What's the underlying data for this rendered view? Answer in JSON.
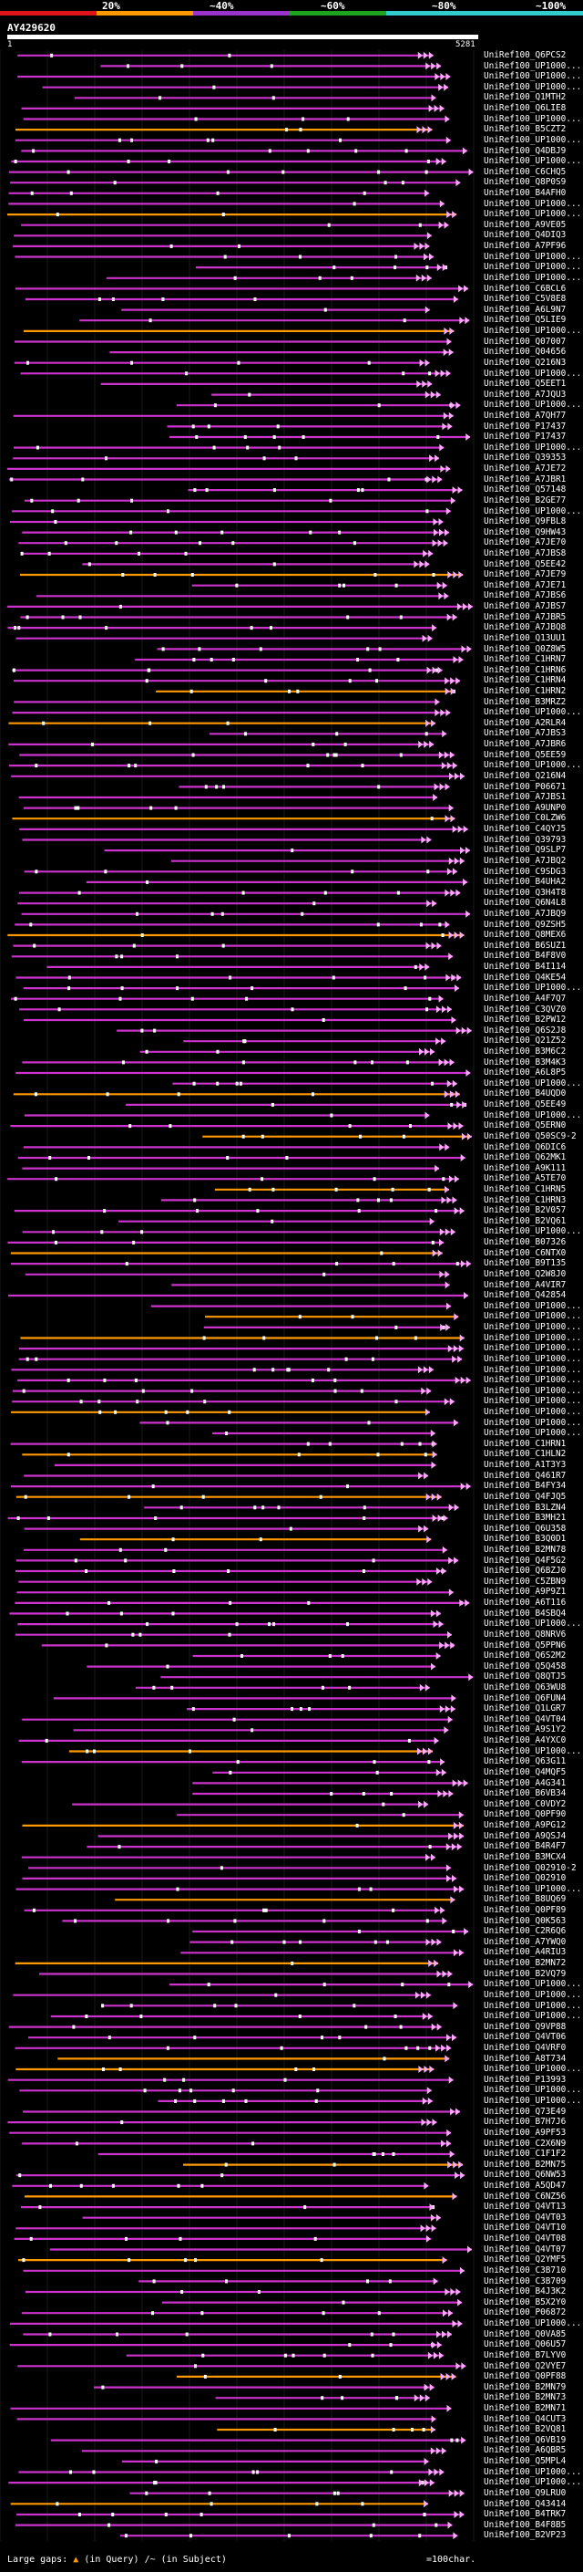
{
  "scale": {
    "ticks": [
      "20%",
      "~40%",
      "~60%",
      "~80%",
      "~100%"
    ],
    "colors": [
      "#e0121a",
      "#ff9900",
      "#9933cc",
      "#1ea31e",
      "#33cccc"
    ]
  },
  "query": {
    "id": "AY429620",
    "start": "1",
    "end": "5281"
  },
  "colors": {
    "hit": "#cc33cc",
    "orange": "#ff9900",
    "green": "#22aa22",
    "gap": "#ffffff",
    "arrow": "#ffaaff"
  },
  "hits": [
    "UniRef100_Q6PCS2",
    "UniRef100_UP1000...",
    "UniRef100_UP1000...",
    "UniRef100_UP1000...",
    "UniRef100_Q1MTH2",
    "UniRef100_Q6LIE8",
    "UniRef100_UP1000...",
    "UniRef100_B5CZT2",
    "UniRef100_UP1000...",
    "UniRef100_Q4DBJ9",
    "UniRef100_UP1000...",
    "UniRef100_C6CHQ5",
    "UniRef100_Q8P0S9",
    "UniRef100_B4AFH0",
    "UniRef100_UP1000...",
    "UniRef100_UP1000...",
    "UniRef100_A9VE05",
    "UniRef100_Q4DIQ3",
    "UniRef100_A7PF96",
    "UniRef100_UP1000...",
    "UniRef100_UP1000...",
    "UniRef100_UP1000...",
    "UniRef100_C6BCL6",
    "UniRef100_C5V8E8",
    "UniRef100_A6L9N7",
    "UniRef100_Q5LIE9",
    "UniRef100_UP1000...",
    "UniRef100_Q07007",
    "UniRef100_Q04656",
    "UniRef100_Q216N3",
    "UniRef100_UP1000...",
    "UniRef100_Q5EET1",
    "UniRef100_A7JQU3",
    "UniRef100_UP1000...",
    "UniRef100_A7QH77",
    "UniRef100_P17437",
    "UniRef100_P17437",
    "UniRef100_UP1000...",
    "UniRef100_Q39353",
    "UniRef100_A7JE72",
    "UniRef100_A7JBR1",
    "UniRef100_Q57148",
    "UniRef100_B2GE77",
    "UniRef100_UP1000...",
    "UniRef100_Q9FBL8",
    "UniRef100_Q9HW43",
    "UniRef100_A7JE70",
    "UniRef100_A7JBS8",
    "UniRef100_Q5EE42",
    "UniRef100_A7JE79",
    "UniRef100_A7JE71",
    "UniRef100_A7JBS6",
    "UniRef100_A7JBS7",
    "UniRef100_A7JBR5",
    "UniRef100_A7JBQ8",
    "UniRef100_Q13UU1",
    "UniRef100_Q0Z8W5",
    "UniRef100_C1HRN7",
    "UniRef100_C1HRN6",
    "UniRef100_C1HRN4",
    "UniRef100_C1HRN2",
    "UniRef100_B3MRZ2",
    "UniRef100_UP1000...",
    "UniRef100_A2RLR4",
    "UniRef100_A7JBS3",
    "UniRef100_A7JBR6",
    "UniRef100_Q5EE59",
    "UniRef100_UP1000...",
    "UniRef100_Q216N4",
    "UniRef100_P06671",
    "UniRef100_A7JBS1",
    "UniRef100_A9UNP0",
    "UniRef100_C0LZW6",
    "UniRef100_C4QYJ5",
    "UniRef100_Q39793",
    "UniRef100_Q9SLP7",
    "UniRef100_A7JBQ2",
    "UniRef100_C9SDG3",
    "UniRef100_B4UHA2",
    "UniRef100_Q3H4T8",
    "UniRef100_Q6N4L8",
    "UniRef100_A7JBQ9",
    "UniRef100_Q9ZSH5",
    "UniRef100_Q8MEX6",
    "UniRef100_B6SUZ1",
    "UniRef100_B4F8V0",
    "UniRef100_B4I114",
    "UniRef100_Q4KE54",
    "UniRef100_UP1000...",
    "UniRef100_A4F7Q7",
    "UniRef100_C3QVZ0",
    "UniRef100_B2PW12",
    "UniRef100_Q6S2J8",
    "UniRef100_Q21Z52",
    "UniRef100_B3M6C2",
    "UniRef100_B3M4K3",
    "UniRef100_A6L8P5",
    "UniRef100_UP1000...",
    "UniRef100_B4UQD0",
    "UniRef100_Q5EE49",
    "UniRef100_UP1000...",
    "UniRef100_Q5ERN0",
    "UniRef100_Q50SC9-2",
    "UniRef100_Q6DIC6",
    "UniRef100_Q62MK1",
    "UniRef100_A9K111",
    "UniRef100_A5TE70",
    "UniRef100_C1HRN5",
    "UniRef100_C1HRN3",
    "UniRef100_B2V057",
    "UniRef100_B2VQ61",
    "UniRef100_UP1000...",
    "UniRef100_B07326",
    "UniRef100_C6NTX0",
    "UniRef100_B9T135",
    "UniRef100_Q2W8J0",
    "UniRef100_A4VIR7",
    "UniRef100_Q42854",
    "UniRef100_UP1000...",
    "UniRef100_UP1000...",
    "UniRef100_UP1000...",
    "UniRef100_UP1000...",
    "UniRef100_UP1000...",
    "UniRef100_UP1000...",
    "UniRef100_UP1000...",
    "UniRef100_UP1000...",
    "UniRef100_UP1000...",
    "UniRef100_UP1000...",
    "UniRef100_UP1000...",
    "UniRef100_UP1000...",
    "UniRef100_UP1000...",
    "UniRef100_C1HRN1",
    "UniRef100_C1HLN2",
    "UniRef100_A1T3Y3",
    "UniRef100_Q461R7",
    "UniRef100_B4FY34",
    "UniRef100_Q4FJQ5",
    "UniRef100_B3LZN4",
    "UniRef100_B3MH21",
    "UniRef100_Q6U358",
    "UniRef100_B3Q0D1",
    "UniRef100_B2MN78",
    "UniRef100_Q4F5G2",
    "UniRef100_Q6BZJ0",
    "UniRef100_C5ZBN9",
    "UniRef100_A9P9Z1",
    "UniRef100_A6T116",
    "UniRef100_B4SBQ4",
    "UniRef100_UP1000...",
    "UniRef100_Q8NRV6",
    "UniRef100_Q5PPN6",
    "UniRef100_Q6S2M2",
    "UniRef100_Q5Q458",
    "UniRef100_Q8QTJ5",
    "UniRef100_Q63WU8",
    "UniRef100_Q6FUN4",
    "UniRef100_Q1LGR7",
    "UniRef100_Q4VT04",
    "UniRef100_A9S1Y2",
    "UniRef100_A4YXC0",
    "UniRef100_UP1000...",
    "UniRef100_Q63G11",
    "UniRef100_Q4MQF5",
    "UniRef100_A4G341",
    "UniRef100_B6VB34",
    "UniRef100_C0VDY2",
    "UniRef100_Q0PF90",
    "UniRef100_A9PG12",
    "UniRef100_A9QSJ4",
    "UniRef100_B4R4F7",
    "UniRef100_B3MCX4",
    "UniRef100_Q02910-2",
    "UniRef100_Q02910",
    "UniRef100_UP1000...",
    "UniRef100_B8UQ69",
    "UniRef100_Q0PF89",
    "UniRef100_Q0K563",
    "UniRef100_C2R6Q6",
    "UniRef100_A7YWQ0",
    "UniRef100_A4RIU3",
    "UniRef100_B2MN72",
    "UniRef100_B2VQ79",
    "UniRef100_UP1000...",
    "UniRef100_UP1000...",
    "UniRef100_UP1000...",
    "UniRef100_UP1000...",
    "UniRef100_Q9VP88",
    "UniRef100_Q4VT06",
    "UniRef100_Q4VRF0",
    "UniRef100_A8T734",
    "UniRef100_UP1000...",
    "UniRef100_P13993",
    "UniRef100_UP1000...",
    "UniRef100_UP1000...",
    "UniRef100_Q73E49",
    "UniRef100_B7H7J6",
    "UniRef100_A9PF53",
    "UniRef100_C2X6N9",
    "UniRef100_C1F1F2",
    "UniRef100_B2MN75",
    "UniRef100_Q6NW53",
    "UniRef100_A5QD47",
    "UniRef100_C6NZ56",
    "UniRef100_Q4VT13",
    "UniRef100_Q4VT03",
    "UniRef100_Q4VT10",
    "UniRef100_Q4VT08",
    "UniRef100_Q4VT07",
    "UniRef100_Q2YMF5",
    "UniRef100_C3B710",
    "UniRef100_C3B709",
    "UniRef100_B4J3K2",
    "UniRef100_B5X2Y0",
    "UniRef100_P06872",
    "UniRef100_UP1000...",
    "UniRef100_Q0VA85",
    "UniRef100_Q06U57",
    "UniRef100_B7LYV0",
    "UniRef100_Q2VYE7",
    "UniRef100_Q0PF88",
    "UniRef100_B2MN79",
    "UniRef100_B2MN73",
    "UniRef100_B2MN71",
    "UniRef100_Q4CUT3",
    "UniRef100_B2VQ81",
    "UniRef100_Q6VB19",
    "UniRef100_A6QBR5",
    "UniRef100_Q5MPL4",
    "UniRef100_UP1000...",
    "UniRef100_UP1000...",
    "UniRef100_Q9LRU0",
    "UniRef100_Q43414",
    "UniRef100_B4TRK7",
    "UniRef100_B4F8B5",
    "UniRef100_B2VP23"
  ],
  "legend": {
    "label": "Large gaps:",
    "query_gap": "(in Query)",
    "subject_gap": "/~ (in Subject)",
    "scale_key": "=100char."
  }
}
